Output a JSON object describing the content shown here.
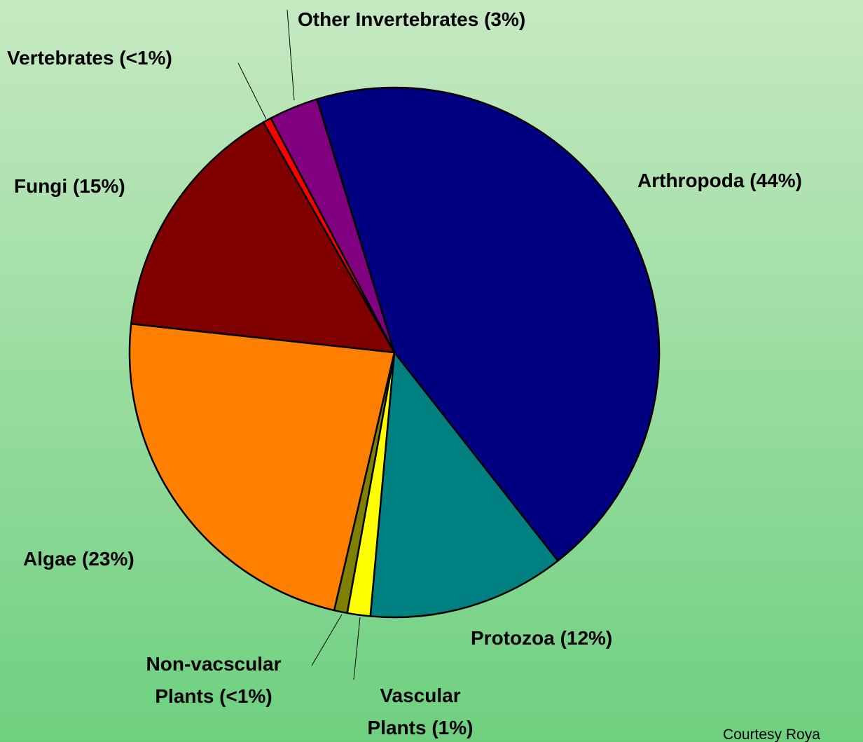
{
  "chart_data": {
    "type": "pie",
    "categories": [
      "Arthropoda",
      "Protozoa",
      "Vascular Plants",
      "Non-vacscular Plants",
      "Algae",
      "Fungi",
      "Vertebrates",
      "Other Invertebrates"
    ],
    "values": [
      44,
      12,
      1.4,
      0.8,
      23,
      15,
      0.5,
      3
    ],
    "value_labels": [
      "(44%)",
      "(12%)",
      "(1%)",
      "(<1%)",
      "(23%)",
      "(15%)",
      "(<1%)",
      "(3%)"
    ],
    "colors": [
      "#000080",
      "#008080",
      "#ffff00",
      "#7f7f00",
      "#ff8000",
      "#800000",
      "#ff0000",
      "#800080"
    ],
    "note": "Courtesy Roya"
  }
}
